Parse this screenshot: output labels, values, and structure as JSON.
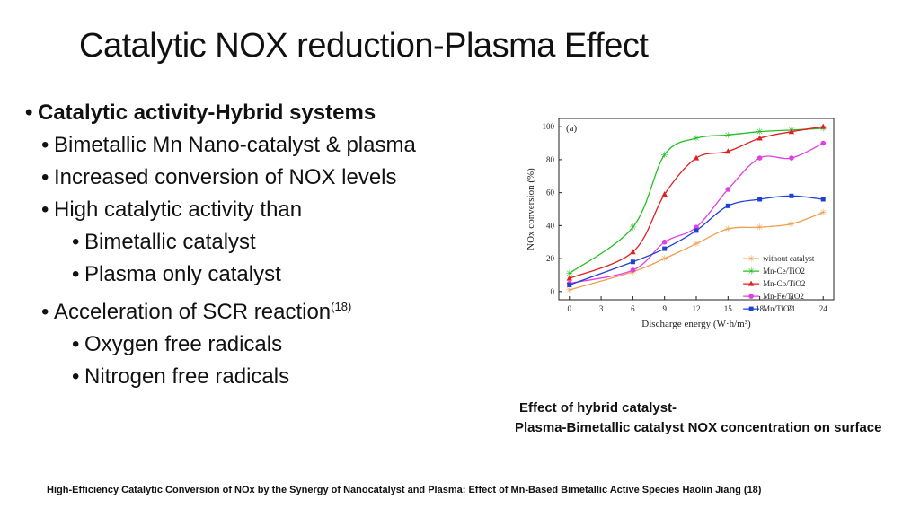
{
  "slide": {
    "title": "Catalytic NOX reduction-Plasma Effect",
    "bullets": [
      {
        "level": 0,
        "text": "Catalytic activity-Hybrid systems"
      },
      {
        "level": 1,
        "text": "Bimetallic Mn Nano-catalyst & plasma"
      },
      {
        "level": 1,
        "text": "Increased conversion of NOX levels"
      },
      {
        "level": 1,
        "text": "High catalytic activity than"
      },
      {
        "level": 2,
        "text": "Bimetallic catalyst"
      },
      {
        "level": 2,
        "text": "Plasma only catalyst"
      },
      {
        "level": 1,
        "text": "Acceleration of SCR reaction",
        "sup": "(18)"
      },
      {
        "level": 2,
        "text": "Oxygen free radicals"
      },
      {
        "level": 2,
        "text": "Nitrogen free radicals"
      }
    ],
    "caption_line1": "Effect of hybrid catalyst-",
    "caption_line2": "Plasma-Bimetallic catalyst NOX concentration on surface",
    "footer": "High-Efficiency Catalytic Conversion of NOx by the Synergy of Nanocatalyst and Plasma: Effect of Mn-Based Bimetallic Active Species   Haolin Jiang (18)"
  },
  "chart_data": {
    "type": "line",
    "panel_label": "(a)",
    "xlabel": "Discharge energy (W·h/m³)",
    "ylabel": "NOx conversion (%)",
    "x_ticks": [
      0,
      3,
      6,
      9,
      12,
      15,
      18,
      21,
      24
    ],
    "y_ticks": [
      0,
      20,
      40,
      60,
      80,
      100
    ],
    "xlim": [
      -1,
      25
    ],
    "ylim": [
      -5,
      105
    ],
    "x": [
      0,
      6,
      9,
      12,
      15,
      18,
      21,
      24
    ],
    "legend_position": "bottom-right",
    "series": [
      {
        "name": "without catalyst",
        "marker": "star",
        "color": "#f0a050",
        "values": [
          1,
          12,
          20,
          29,
          38,
          39,
          41,
          48
        ]
      },
      {
        "name": "Mn-Ce/TiO2",
        "marker": "star",
        "color": "#22c022",
        "values": [
          11,
          39,
          83,
          93,
          95,
          97,
          98,
          99
        ]
      },
      {
        "name": "Mn-Co/TiO2",
        "marker": "triangle",
        "color": "#e02020",
        "values": [
          8,
          24,
          59,
          81,
          85,
          93,
          97,
          100
        ]
      },
      {
        "name": "Mn-Fe/TiO2",
        "marker": "circle",
        "color": "#e040e0",
        "values": [
          5,
          13,
          30,
          39,
          62,
          81,
          81,
          90
        ]
      },
      {
        "name": "Mn/TiO2",
        "marker": "square",
        "color": "#2040d0",
        "values": [
          4,
          18,
          26,
          37,
          52,
          56,
          58,
          56
        ]
      }
    ]
  }
}
